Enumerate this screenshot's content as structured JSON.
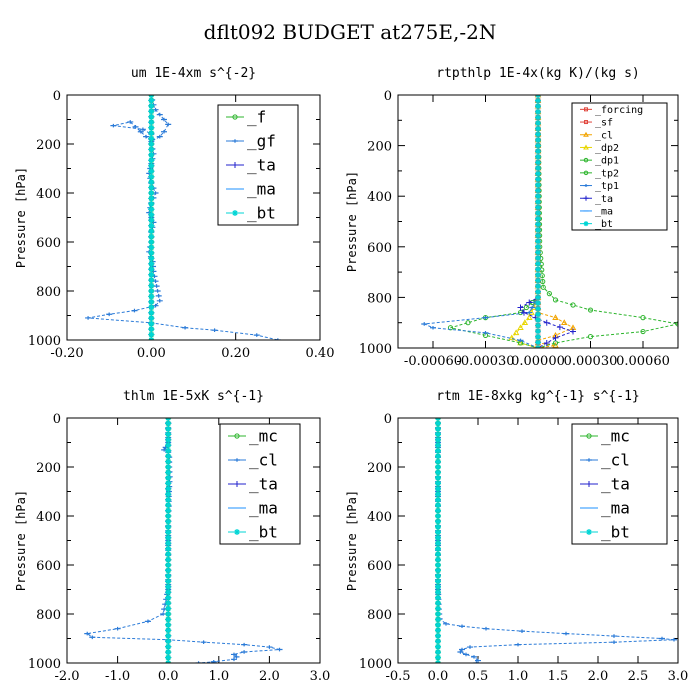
{
  "title": "dflt092  BUDGET at275E,-2N",
  "colors": {
    "forcing": "#e0453c",
    "sf": "#e0453c",
    "cl": "#f2a400",
    "dp2": "#e8d600",
    "dp1": "#2db52d",
    "tp2": "#2db52d",
    "tp1": "#2b7bd8",
    "ta": "#2222cc",
    "ma": "#1e90ff",
    "bt": "#00d5d5",
    "f": "#2db52d",
    "gf": "#2b7bd8",
    "mc": "#2db52d",
    "cl2": "#2b7bd8"
  },
  "chart_data": [
    {
      "type": "line",
      "title": "um   1E-4xm s^{-2}",
      "ylabel": "Pressure [hPa]",
      "xlim": [
        -0.2,
        0.4
      ],
      "ylim": [
        1000,
        0
      ],
      "xticks": [
        "-0.20",
        "0.00",
        "0.20",
        "0.40"
      ],
      "yticks": [
        "0",
        "200",
        "400",
        "600",
        "800",
        "1000"
      ],
      "legend": [
        "_f",
        "_gf",
        "_ta",
        "_ma",
        "_bt"
      ],
      "legend_position": "top-right",
      "series": [
        {
          "name": "_f",
          "color_key": "f",
          "x": [
            0,
            0
          ],
          "y": [
            0,
            1000
          ]
        },
        {
          "name": "_gf",
          "color_key": "gf",
          "x": [
            0,
            0.002,
            0.005,
            0.01,
            0.02,
            0.03,
            0.04,
            0.03,
            0.02,
            0,
            -0.05,
            -0.09,
            -0.02,
            0,
            0,
            0.005,
            0,
            -0.005,
            0,
            0.01,
            0,
            -0.005,
            0.005,
            0,
            0,
            -0.005,
            0.003,
            0.005,
            0.01,
            0.015,
            0.02,
            0.01,
            -0.04,
            -0.1,
            -0.15,
            0,
            0.08,
            0.15,
            0.25,
            0.3
          ],
          "y": [
            0,
            20,
            40,
            60,
            80,
            100,
            120,
            150,
            170,
            190,
            110,
            125,
            140,
            160,
            200,
            240,
            280,
            320,
            360,
            400,
            440,
            480,
            520,
            560,
            600,
            640,
            680,
            720,
            760,
            800,
            840,
            860,
            880,
            895,
            910,
            930,
            950,
            960,
            980,
            1000
          ]
        },
        {
          "name": "_ta",
          "color_key": "ta",
          "x": [
            0,
            0
          ],
          "y": [
            0,
            1000
          ]
        },
        {
          "name": "_ma",
          "color_key": "ma",
          "x": [
            0,
            0
          ],
          "y": [
            0,
            1000
          ]
        },
        {
          "name": "_bt",
          "color_key": "bt",
          "x": [
            0,
            0
          ],
          "y": [
            0,
            1000
          ]
        }
      ]
    },
    {
      "type": "line",
      "title": "rtpthlp   1E-4x(kg K)/(kg s)",
      "ylabel": "Pressure [hPa]",
      "xlim": [
        -0.0008,
        0.0008
      ],
      "ylim": [
        1000,
        0
      ],
      "xticks": [
        "-0.00060",
        "-0.00030",
        "0.00000",
        "0.00030",
        "0.00060"
      ],
      "yticks": [
        "0",
        "200",
        "400",
        "600",
        "800",
        "1000"
      ],
      "legend": [
        "_forcing",
        "_sf",
        "_cl",
        "_dp2",
        "_dp1",
        "_tp2",
        "_tp1",
        "_ta",
        "_ma",
        "_bt"
      ],
      "legend_position": "top-right",
      "series": [
        {
          "name": "_forcing",
          "color_key": "forcing",
          "x": [
            0,
            0
          ],
          "y": [
            0,
            1000
          ]
        },
        {
          "name": "_sf",
          "color_key": "sf",
          "x": [
            0,
            0
          ],
          "y": [
            0,
            1000
          ]
        },
        {
          "name": "_cl",
          "color_key": "cl",
          "x": [
            0,
            0,
            0,
            0.0001,
            0.0002,
            0.0001,
            0,
            0,
            0.0001,
            0
          ],
          "y": [
            0,
            800,
            860,
            880,
            920,
            950,
            970,
            980,
            990,
            1000
          ]
        },
        {
          "name": "_dp2",
          "color_key": "dp2",
          "x": [
            0,
            0,
            -5e-05,
            -0.0001,
            -0.00015,
            -0.0001,
            0
          ],
          "y": [
            0,
            800,
            880,
            920,
            960,
            980,
            1000
          ]
        },
        {
          "name": "_dp1",
          "color_key": "dp1",
          "x": [
            0,
            1e-05,
            3e-05,
            0.0001,
            0.0003,
            0.0006,
            0.0008,
            0.0006,
            0.0003,
            0.0001,
            0
          ],
          "y": [
            0,
            600,
            760,
            810,
            850,
            880,
            905,
            935,
            955,
            980,
            1000
          ]
        },
        {
          "name": "_tp2",
          "color_key": "tp2",
          "x": [
            0,
            0,
            -0.0001,
            -0.0003,
            -0.0005,
            -0.0003,
            -0.0001,
            0
          ],
          "y": [
            0,
            800,
            860,
            880,
            920,
            950,
            980,
            1000
          ]
        },
        {
          "name": "_tp1",
          "color_key": "tp1",
          "x": [
            0,
            0,
            -5e-05,
            -0.0003,
            -0.00065,
            -0.0006,
            -0.0003,
            -0.0001,
            0
          ],
          "y": [
            0,
            800,
            860,
            880,
            905,
            920,
            940,
            970,
            1000
          ]
        },
        {
          "name": "_ta",
          "color_key": "ta",
          "x": [
            0,
            0,
            -0.0001,
            -8e-05,
            5e-05,
            0.0002,
            0.0001,
            0
          ],
          "y": [
            0,
            800,
            840,
            860,
            900,
            935,
            960,
            1000
          ]
        },
        {
          "name": "_ma",
          "color_key": "ma",
          "x": [
            0,
            0
          ],
          "y": [
            0,
            1000
          ]
        },
        {
          "name": "_bt",
          "color_key": "bt",
          "x": [
            0,
            0
          ],
          "y": [
            0,
            1000
          ]
        }
      ]
    },
    {
      "type": "line",
      "title": "thlm   1E-5xK s^{-1}",
      "ylabel": "Pressure [hPa]",
      "xlim": [
        -2.0,
        3.0
      ],
      "ylim": [
        1000,
        0
      ],
      "xticks": [
        "-2.0",
        "-1.0",
        "0.0",
        "1.0",
        "2.0",
        "3.0"
      ],
      "yticks": [
        "0",
        "200",
        "400",
        "600",
        "800",
        "1000"
      ],
      "legend": [
        "_mc",
        "_cl",
        "_ta",
        "_ma",
        "_bt"
      ],
      "legend_position": "top-right",
      "series": [
        {
          "name": "_mc",
          "color_key": "mc",
          "x": [
            0,
            0
          ],
          "y": [
            0,
            1000
          ]
        },
        {
          "name": "_cl",
          "color_key": "cl2",
          "x": [
            0,
            0,
            -0.05,
            -0.08,
            0,
            0.02,
            0.02,
            0.03,
            0.02,
            0.01,
            0.01,
            0,
            0,
            0,
            0,
            0,
            0,
            0,
            0,
            -0.1,
            -0.4,
            -1.0,
            -1.6,
            -1.5,
            0,
            0.7,
            1.5,
            2.0,
            2.2,
            1.5,
            1.3,
            1.35,
            1.3,
            0.9,
            0.6
          ],
          "y": [
            0,
            100,
            120,
            130,
            140,
            160,
            200,
            240,
            280,
            320,
            360,
            400,
            440,
            480,
            520,
            560,
            600,
            640,
            700,
            800,
            830,
            860,
            880,
            895,
            905,
            915,
            925,
            935,
            945,
            955,
            965,
            975,
            985,
            995,
            1000
          ]
        },
        {
          "name": "_ta",
          "color_key": "ta",
          "x": [
            0,
            0
          ],
          "y": [
            0,
            1000
          ]
        },
        {
          "name": "_ma",
          "color_key": "ma",
          "x": [
            0,
            0
          ],
          "y": [
            0,
            1000
          ]
        },
        {
          "name": "_bt",
          "color_key": "bt",
          "x": [
            0,
            0
          ],
          "y": [
            0,
            1000
          ]
        }
      ]
    },
    {
      "type": "line",
      "title": "rtm   1E-8xkg kg^{-1} s^{-1}",
      "ylabel": "Pressure [hPa]",
      "xlim": [
        -0.5,
        3.0
      ],
      "ylim": [
        1000,
        0
      ],
      "xticks": [
        "-0.5",
        "0.0",
        "0.5",
        "1.0",
        "1.5",
        "2.0",
        "2.5",
        "3.0"
      ],
      "yticks": [
        "0",
        "200",
        "400",
        "600",
        "800",
        "1000"
      ],
      "legend": [
        "_mc",
        "_cl",
        "_ta",
        "_ma",
        "_bt"
      ],
      "legend_position": "top-right",
      "series": [
        {
          "name": "_mc",
          "color_key": "mc",
          "x": [
            0,
            0
          ],
          "y": [
            0,
            1000
          ]
        },
        {
          "name": "_cl",
          "color_key": "cl2",
          "x": [
            0,
            0,
            0,
            0,
            0,
            0,
            0,
            0,
            0.01,
            0.02,
            0.1,
            0.3,
            0.6,
            1.05,
            1.6,
            2.2,
            2.8,
            2.95,
            2.2,
            1.0,
            0.4,
            0.3,
            0.28,
            0.35,
            0.45,
            0.5,
            0.48
          ],
          "y": [
            0,
            100,
            200,
            300,
            400,
            500,
            600,
            700,
            780,
            820,
            840,
            850,
            860,
            870,
            880,
            890,
            900,
            905,
            915,
            925,
            935,
            945,
            955,
            965,
            975,
            990,
            1000
          ]
        },
        {
          "name": "_ta",
          "color_key": "ta",
          "x": [
            0,
            0
          ],
          "y": [
            0,
            1000
          ]
        },
        {
          "name": "_ma",
          "color_key": "ma",
          "x": [
            0,
            0
          ],
          "y": [
            0,
            1000
          ]
        },
        {
          "name": "_bt",
          "color_key": "bt",
          "x": [
            0,
            0
          ],
          "y": [
            0,
            1000
          ]
        }
      ]
    }
  ]
}
